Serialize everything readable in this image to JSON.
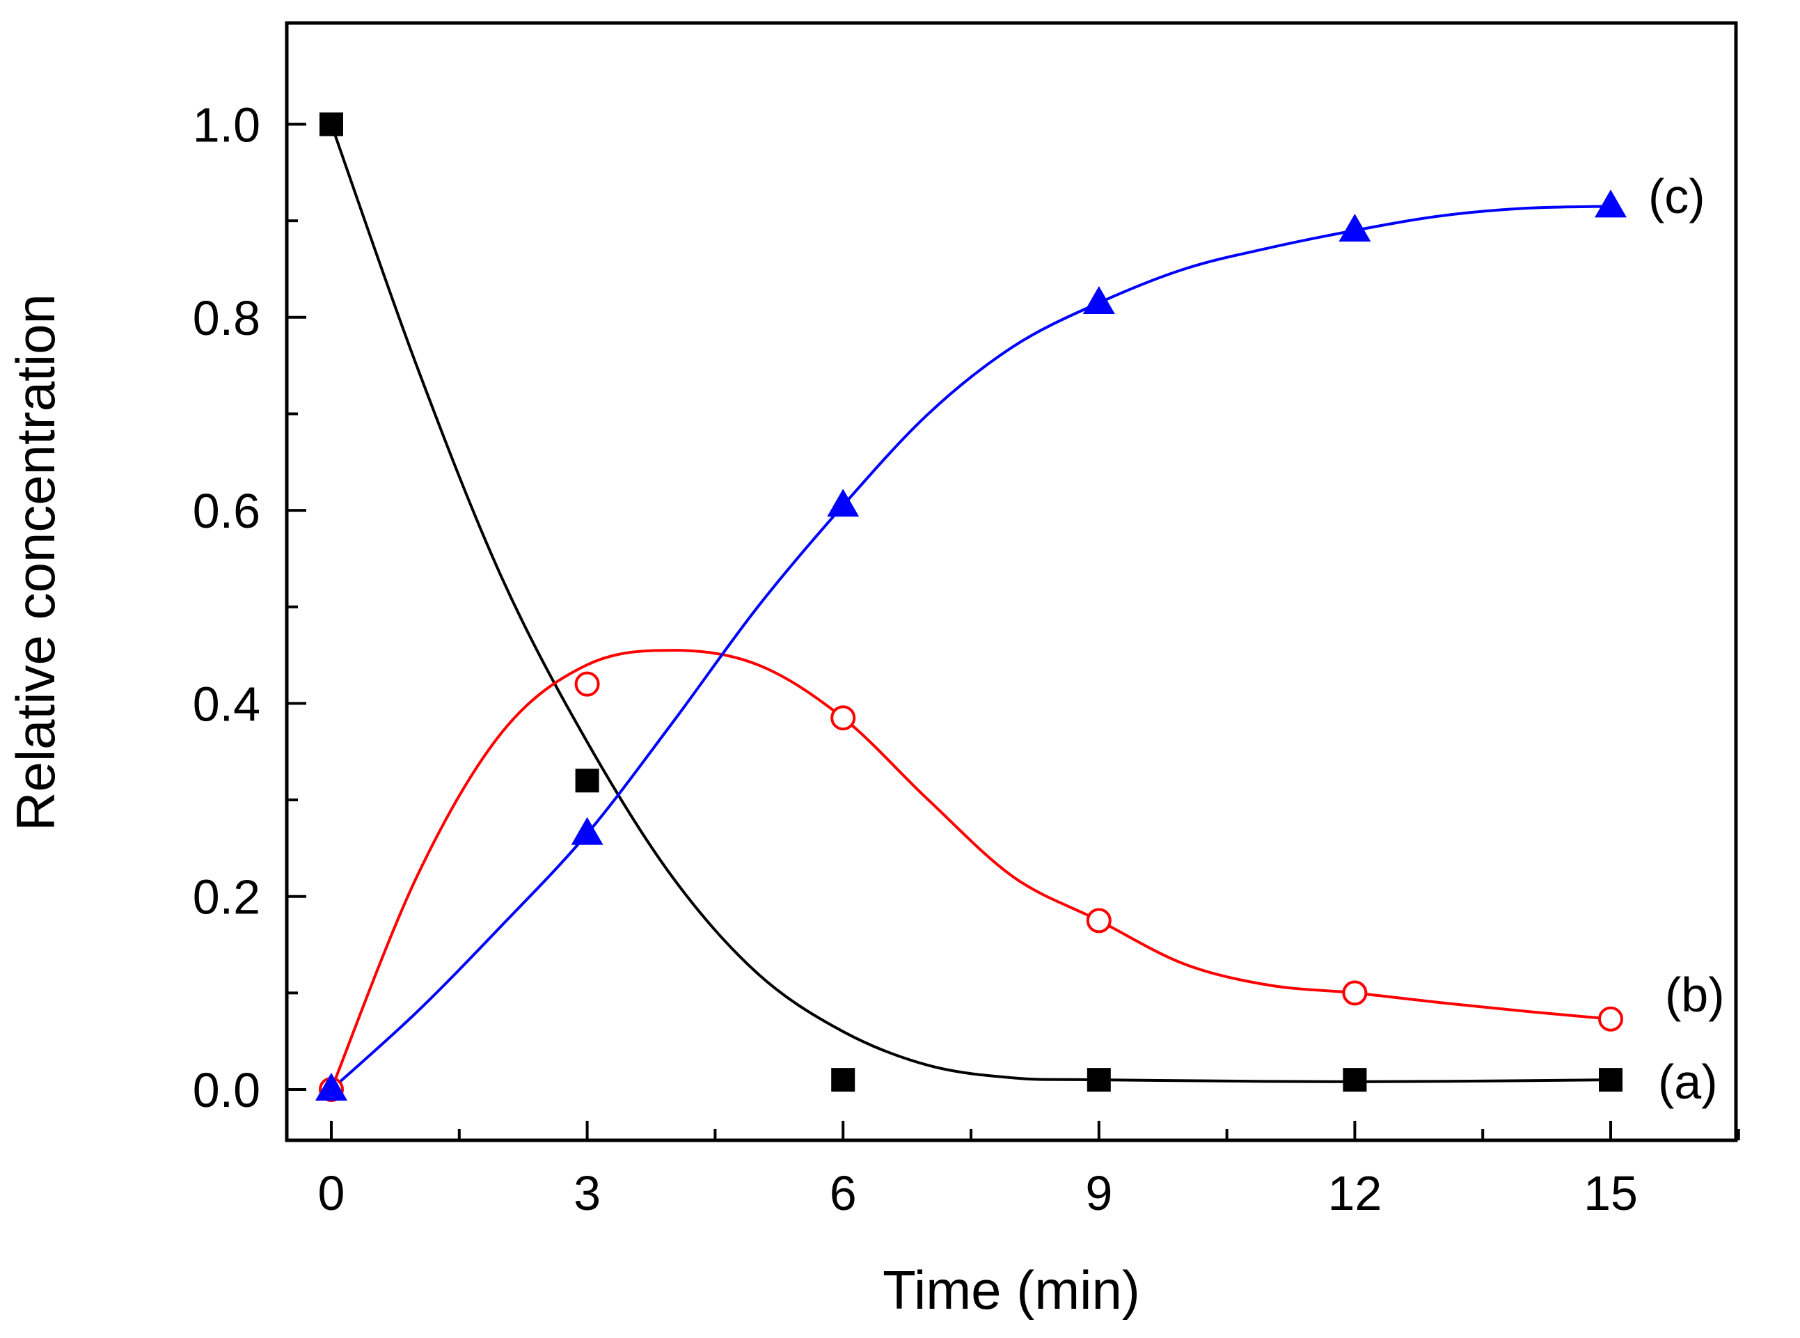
{
  "chart_data": {
    "type": "line",
    "title": "",
    "xlabel": "Time (min)",
    "ylabel": "Relative concentration",
    "xlim": [
      -1,
      17
    ],
    "ylim": [
      -0.05,
      1.1
    ],
    "xticks": [
      0,
      3,
      6,
      9,
      12,
      15
    ],
    "xtick_labels": [
      "0",
      "3",
      "6",
      "9",
      "12",
      "15"
    ],
    "yticks": [
      0.0,
      0.2,
      0.4,
      0.6,
      0.8,
      1.0
    ],
    "ytick_labels": [
      "0.0",
      "0.2",
      "0.4",
      "0.6",
      "0.8",
      "1.0"
    ],
    "grid": false,
    "x": [
      0,
      3,
      6,
      9,
      12,
      15
    ],
    "series": [
      {
        "name": "(a)",
        "label": "(a)",
        "color": "#000000",
        "marker": "square-filled",
        "values": [
          1.0,
          0.32,
          0.01,
          0.01,
          0.01,
          0.01
        ],
        "fit_curve": [
          [
            0,
            1.0
          ],
          [
            1,
            0.75
          ],
          [
            2,
            0.53
          ],
          [
            3,
            0.36
          ],
          [
            4,
            0.22
          ],
          [
            5,
            0.12
          ],
          [
            6,
            0.06
          ],
          [
            7,
            0.025
          ],
          [
            8,
            0.012
          ],
          [
            9,
            0.01
          ],
          [
            12,
            0.008
          ],
          [
            15,
            0.01
          ]
        ]
      },
      {
        "name": "(b)",
        "label": "(b)",
        "color": "#ff0000",
        "marker": "circle-open",
        "values": [
          0.0,
          0.42,
          0.385,
          0.175,
          0.1,
          0.073
        ],
        "fit_curve": [
          [
            0,
            0.0
          ],
          [
            1,
            0.22
          ],
          [
            2,
            0.37
          ],
          [
            3,
            0.44
          ],
          [
            4,
            0.455
          ],
          [
            5,
            0.44
          ],
          [
            6,
            0.385
          ],
          [
            7,
            0.3
          ],
          [
            8,
            0.22
          ],
          [
            9,
            0.175
          ],
          [
            10,
            0.13
          ],
          [
            11,
            0.108
          ],
          [
            12,
            0.1
          ],
          [
            13,
            0.09
          ],
          [
            14,
            0.081
          ],
          [
            15,
            0.073
          ]
        ]
      },
      {
        "name": "(c)",
        "label": "(c)",
        "color": "#0000ff",
        "marker": "triangle-filled",
        "values": [
          0.0,
          0.265,
          0.605,
          0.815,
          0.89,
          0.915
        ],
        "fit_curve": [
          [
            0,
            0.0
          ],
          [
            1,
            0.08
          ],
          [
            2,
            0.17
          ],
          [
            3,
            0.265
          ],
          [
            4,
            0.38
          ],
          [
            5,
            0.5
          ],
          [
            6,
            0.605
          ],
          [
            7,
            0.7
          ],
          [
            8,
            0.77
          ],
          [
            9,
            0.815
          ],
          [
            10,
            0.85
          ],
          [
            11,
            0.872
          ],
          [
            12,
            0.89
          ],
          [
            13,
            0.905
          ],
          [
            14,
            0.913
          ],
          [
            15,
            0.915
          ]
        ]
      }
    ]
  }
}
